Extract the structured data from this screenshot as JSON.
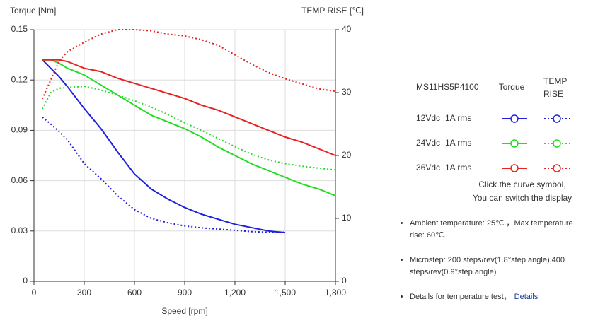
{
  "chart_data": {
    "type": "line",
    "ylabel": "Torque  [Nm]",
    "y2label": "TEMP RISE [℃]",
    "xlabel": "Speed [rpm]",
    "x": [
      50,
      100,
      150,
      200,
      300,
      400,
      500,
      600,
      700,
      800,
      900,
      1000,
      1100,
      1200,
      1300,
      1400,
      1500,
      1600,
      1700,
      1800
    ],
    "xlim": [
      0,
      1800
    ],
    "xticks": [
      0,
      300,
      600,
      900,
      {
        "value": 1200,
        "label": "1,200"
      },
      {
        "value": 1500,
        "label": "1,500"
      },
      {
        "value": 1800,
        "label": "1,800"
      }
    ],
    "ylim": [
      0,
      0.15
    ],
    "yticks": [
      0,
      0.03,
      0.06,
      0.09,
      0.12,
      0.15
    ],
    "y2lim": [
      0,
      40
    ],
    "y2ticks": [
      0,
      10,
      20,
      30,
      40
    ],
    "grid": true,
    "series": [
      {
        "color": "#1f1fe0",
        "style": "solid",
        "axis": "y",
        "values": [
          0.132,
          0.127,
          0.122,
          0.116,
          0.103,
          0.091,
          0.077,
          0.064,
          0.055,
          0.049,
          0.044,
          0.04,
          0.037,
          0.034,
          0.032,
          0.03,
          0.029,
          null,
          null,
          null
        ]
      },
      {
        "color": "#22dd22",
        "style": "solid",
        "axis": "y",
        "values": [
          0.132,
          0.132,
          0.13,
          0.127,
          0.123,
          0.117,
          0.111,
          0.105,
          0.099,
          0.095,
          0.091,
          0.086,
          0.08,
          0.075,
          0.07,
          0.066,
          0.062,
          0.058,
          0.055,
          0.051
        ]
      },
      {
        "color": "#e82222",
        "style": "solid",
        "axis": "y",
        "values": [
          0.132,
          0.132,
          0.132,
          0.131,
          0.127,
          0.125,
          0.121,
          0.118,
          0.115,
          0.112,
          0.109,
          0.105,
          0.102,
          0.098,
          0.094,
          0.09,
          0.086,
          0.083,
          0.079,
          0.075
        ]
      },
      {
        "color": "#1f1fe0",
        "style": "dotted",
        "axis": "y2",
        "values": [
          26.1,
          25,
          23.8,
          22.5,
          18.7,
          16.3,
          13.6,
          11.4,
          10,
          9.3,
          8.8,
          8.5,
          8.3,
          8.1,
          7.9,
          7.8,
          7.8,
          null,
          null,
          null
        ]
      },
      {
        "color": "#22dd22",
        "style": "dotted",
        "axis": "y2",
        "values": [
          27.4,
          30,
          30.7,
          30.8,
          31,
          30.4,
          29.6,
          28.7,
          27.7,
          26.5,
          25.2,
          24,
          22.7,
          21.4,
          20.2,
          19.3,
          18.7,
          18.3,
          18,
          17.7
        ]
      },
      {
        "color": "#e82222",
        "style": "dotted",
        "axis": "y2",
        "values": [
          29,
          32,
          35,
          36.5,
          38,
          39.3,
          40,
          40,
          39.8,
          39.3,
          39,
          38.4,
          37.5,
          36,
          34.5,
          33.2,
          32.2,
          31.4,
          30.6,
          30.2
        ]
      }
    ]
  },
  "legend": {
    "model": "MS11HS5P4100",
    "torque": "Torque",
    "temp": "TEMP RISE",
    "rows": [
      {
        "voltage": "12Vdc",
        "current": "1A rms"
      },
      {
        "voltage": "24Vdc",
        "current": "1A rms"
      },
      {
        "voltage": "36Vdc",
        "current": "1A rms"
      }
    ],
    "hint": [
      "Click the curve symbol,",
      "You can switch the display"
    ]
  },
  "notes": [
    {
      "text": "Ambient temperature: 25℃.，Max temperature rise: 60℃."
    },
    {
      "text": "Microstep: 200 steps/rev(1.8°step angle),400 steps/rev(0.9°step angle)"
    },
    {
      "text": "Details for temperature test，",
      "link": "Details"
    }
  ]
}
